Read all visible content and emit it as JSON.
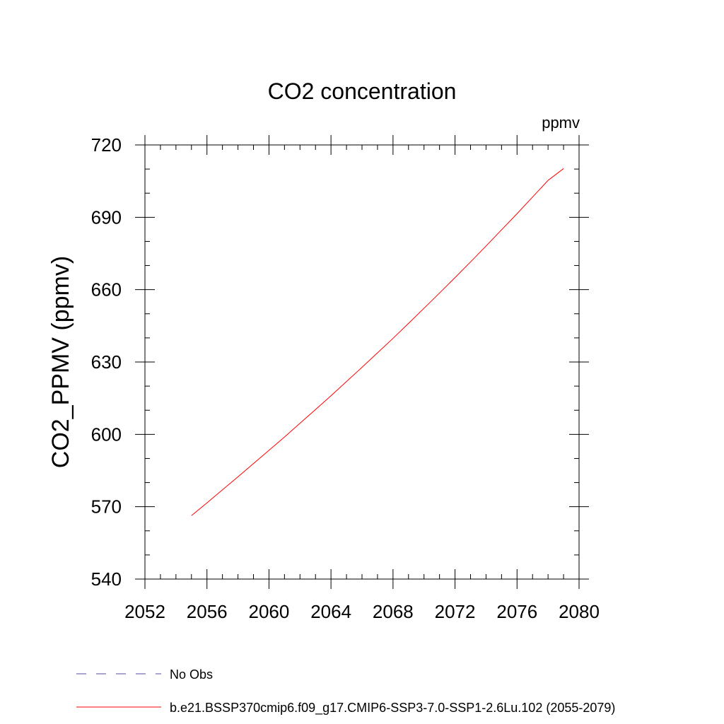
{
  "chart_data": {
    "type": "line",
    "title": "CO2 concentration",
    "units_label": "ppmv",
    "xlabel": "",
    "ylabel": "CO2_PPMV  (ppmv)",
    "xlim": [
      2052,
      2080
    ],
    "ylim": [
      540,
      720
    ],
    "x_ticks": [
      2052,
      2056,
      2060,
      2064,
      2068,
      2072,
      2076,
      2080
    ],
    "y_ticks": [
      540,
      570,
      600,
      630,
      660,
      690,
      720
    ],
    "x_minor_step": 1,
    "y_minor_step": 10,
    "grid": false,
    "legend_position": "bottom",
    "series": [
      {
        "name": "b.e21.BSSP370cmip6.f09_g17.CMIP6-SSP3-7.0-SSP1-2.6Lu.102 (2055-2079)",
        "color": "#ff0000",
        "x": [
          2055,
          2056,
          2057,
          2058,
          2059,
          2060,
          2061,
          2062,
          2063,
          2064,
          2065,
          2066,
          2067,
          2068,
          2069,
          2070,
          2071,
          2072,
          2073,
          2074,
          2075,
          2076,
          2077,
          2078,
          2079
        ],
        "y": [
          566.3,
          571.6,
          577.0,
          582.4,
          587.9,
          593.4,
          598.9,
          604.6,
          610.3,
          616.0,
          621.9,
          627.8,
          633.8,
          639.8,
          646.0,
          652.3,
          658.6,
          665.0,
          671.5,
          678.1,
          684.8,
          691.5,
          698.4,
          705.3,
          710.2
        ]
      }
    ],
    "legend": [
      {
        "label": "No Obs",
        "color": "#5a4aa0",
        "style": "dashed"
      },
      {
        "label": "b.e21.BSSP370cmip6.f09_g17.CMIP6-SSP3-7.0-SSP1-2.6Lu.102 (2055-2079)",
        "color": "#ff0000",
        "style": "solid"
      }
    ]
  }
}
